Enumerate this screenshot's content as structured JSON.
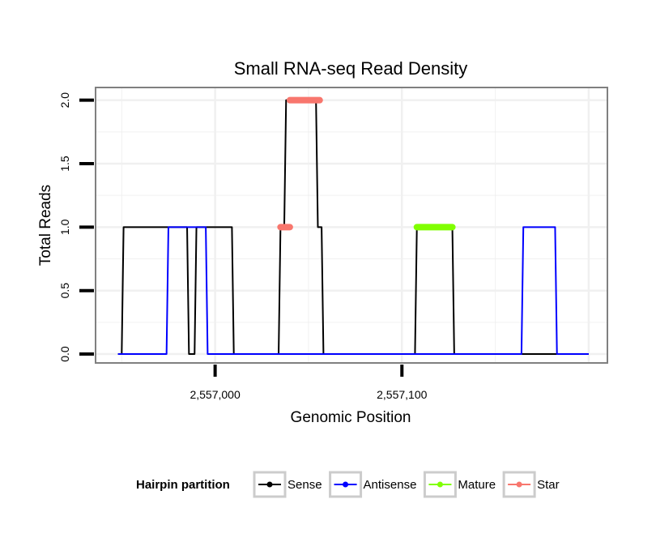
{
  "colors": {
    "sense": "#000000",
    "antisense": "#0000ff",
    "mature": "#80ff00",
    "star": "#f8766d",
    "grid": "#f0f0f0",
    "panel_border": "#808080",
    "legend_key_border": "#cccccc"
  },
  "chart_data": {
    "type": "line",
    "title": "Small RNA-seq Read Density",
    "xlabel": "Genomic Position",
    "ylabel": "Total Reads",
    "xlim": [
      2556936,
      2557210
    ],
    "ylim": [
      -0.07,
      2.1
    ],
    "x_ticks": [
      2557000,
      2557100
    ],
    "x_tick_labels": [
      "2,557,000",
      "2,557,100"
    ],
    "y_ticks": [
      0,
      0.5,
      1,
      1.5,
      2
    ],
    "y_tick_labels": [
      "0.0",
      "0.5",
      "1.0",
      "1.5",
      "2.0"
    ],
    "grid": true,
    "legend": {
      "title": "Hairpin partition",
      "position": "bottom",
      "entries": [
        "Sense",
        "Antisense",
        "Mature",
        "Star"
      ]
    },
    "series": [
      {
        "name": "Sense",
        "style": "line",
        "points": [
          [
            2556948,
            0
          ],
          [
            2556950,
            0
          ],
          [
            2556951,
            1
          ],
          [
            2556959,
            1
          ],
          [
            2556960,
            1
          ],
          [
            2556985,
            1
          ],
          [
            2556986,
            0
          ],
          [
            2556989,
            0
          ],
          [
            2556990,
            1
          ],
          [
            2557000,
            1
          ],
          [
            2557009,
            1
          ],
          [
            2557010,
            0
          ],
          [
            2557034,
            0
          ],
          [
            2557035,
            1
          ],
          [
            2557037,
            1
          ],
          [
            2557038,
            2
          ],
          [
            2557054,
            2
          ],
          [
            2557055,
            1
          ],
          [
            2557057,
            1
          ],
          [
            2557058,
            0
          ],
          [
            2557107,
            0
          ],
          [
            2557108,
            1
          ],
          [
            2557127,
            1
          ],
          [
            2557128,
            0
          ],
          [
            2557200,
            0
          ]
        ]
      },
      {
        "name": "Antisense",
        "style": "line",
        "points": [
          [
            2556948,
            0
          ],
          [
            2556974,
            0
          ],
          [
            2556975,
            1
          ],
          [
            2556995,
            1
          ],
          [
            2556996,
            0
          ],
          [
            2557000,
            0
          ],
          [
            2557164,
            0
          ],
          [
            2557165,
            1
          ],
          [
            2557182,
            1
          ],
          [
            2557183,
            0
          ],
          [
            2557200,
            0
          ]
        ]
      },
      {
        "name": "Mature",
        "style": "segment",
        "points": [
          [
            2557108,
            1
          ],
          [
            2557127,
            1
          ]
        ]
      },
      {
        "name": "Star",
        "style": "segment",
        "segments": [
          [
            [
              2557035,
              1
            ],
            [
              2557040,
              1
            ]
          ],
          [
            [
              2557040,
              2
            ],
            [
              2557056,
              2
            ]
          ]
        ]
      }
    ]
  }
}
